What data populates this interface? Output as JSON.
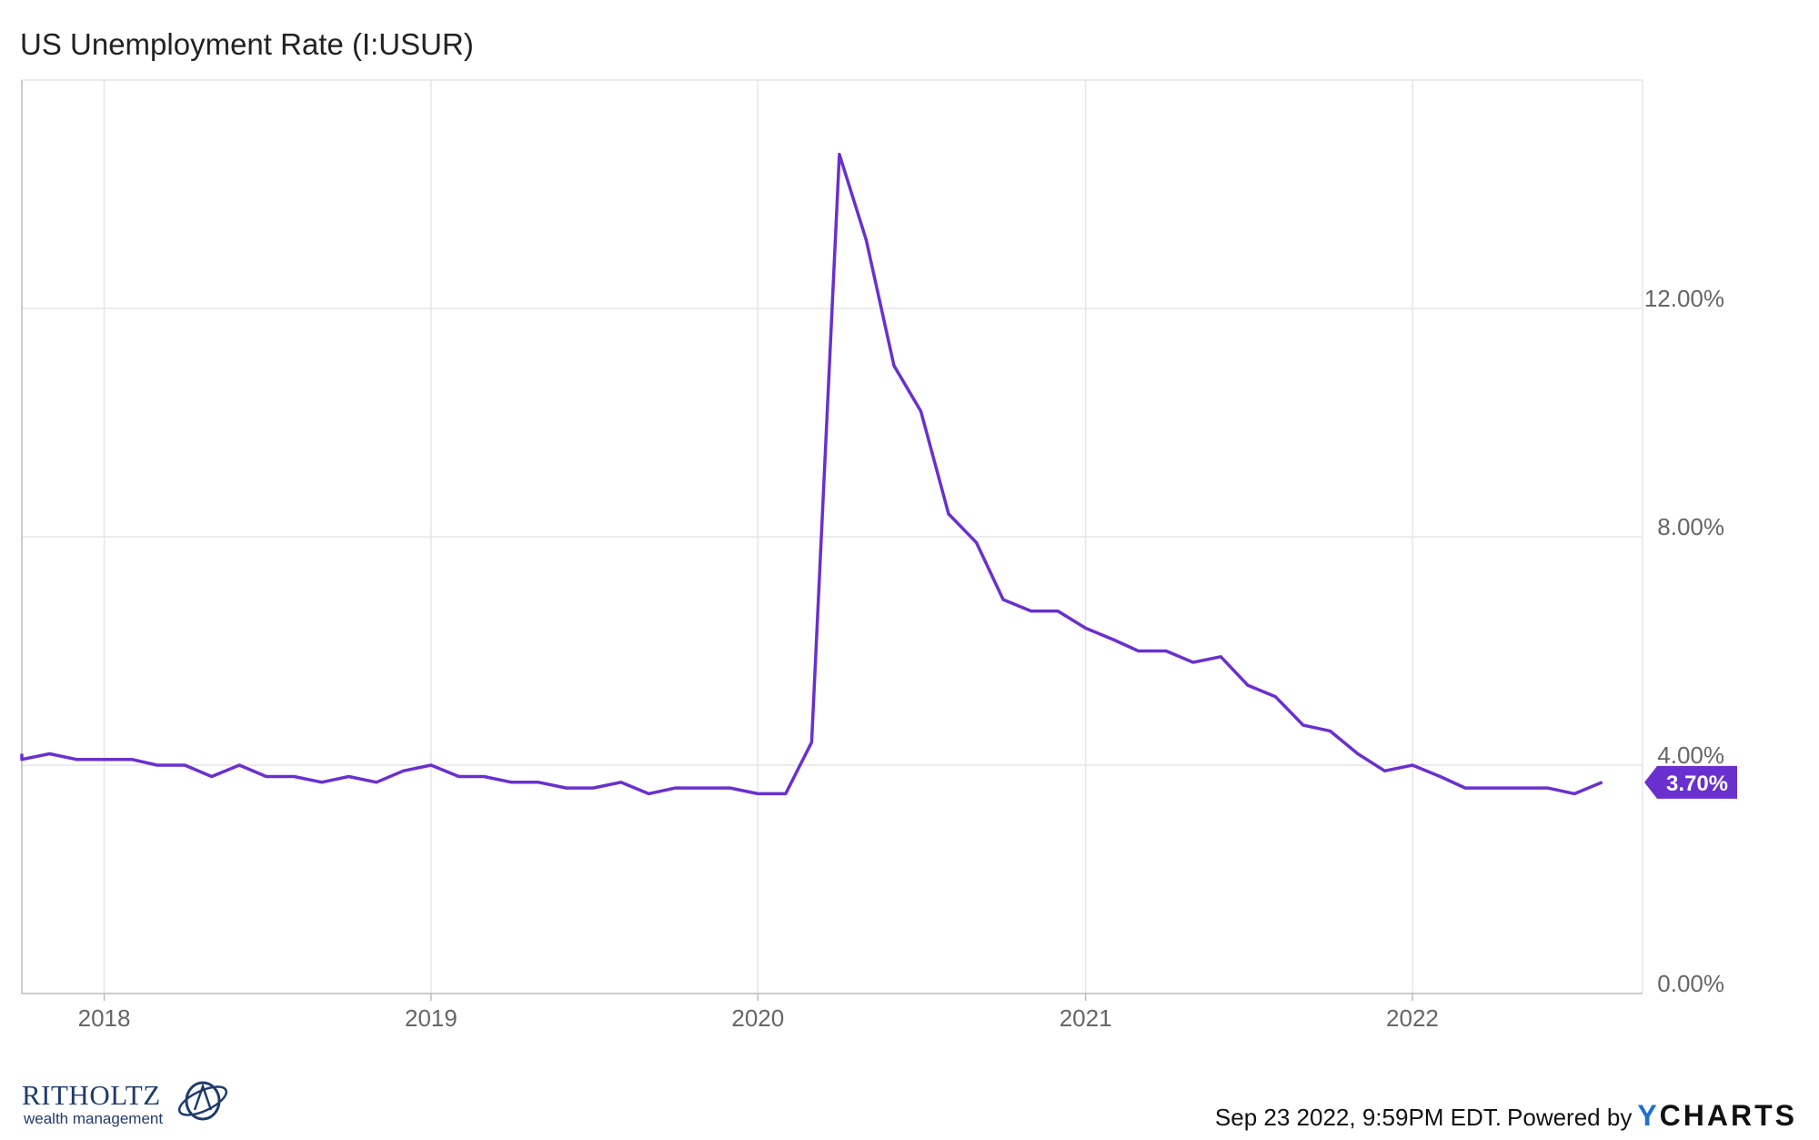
{
  "title": "US Unemployment Rate (I:USUR)",
  "colors": {
    "line": "#6a30cf",
    "grid": "#e6e6e6",
    "axis": "#bbbbbb",
    "badge": "#6a30cf",
    "brand_accent": "#1f6fd1"
  },
  "chart_data": {
    "type": "line",
    "title": "US Unemployment Rate (I:USUR)",
    "xlabel": "",
    "ylabel": "",
    "x_ticks": [
      "2018",
      "2019",
      "2020",
      "2021",
      "2022"
    ],
    "y_ticks": [
      "0.00%",
      "4.00%",
      "8.00%",
      "12.00%"
    ],
    "ylim": [
      0,
      16
    ],
    "grid": true,
    "y_axis_position": "right",
    "last_value_label": "3.70%",
    "series": [
      {
        "dates": [
          "2017-09",
          "2017-10",
          "2017-11",
          "2017-12",
          "2018-01",
          "2018-02",
          "2018-03",
          "2018-04",
          "2018-05",
          "2018-06",
          "2018-07",
          "2018-08",
          "2018-09",
          "2018-10",
          "2018-11",
          "2018-12",
          "2019-01",
          "2019-02",
          "2019-03",
          "2019-04",
          "2019-05",
          "2019-06",
          "2019-07",
          "2019-08",
          "2019-09",
          "2019-10",
          "2019-11",
          "2019-12",
          "2020-01",
          "2020-02",
          "2020-03",
          "2020-04",
          "2020-05",
          "2020-06",
          "2020-07",
          "2020-08",
          "2020-09",
          "2020-10",
          "2020-11",
          "2020-12",
          "2021-01",
          "2021-02",
          "2021-03",
          "2021-04",
          "2021-05",
          "2021-06",
          "2021-07",
          "2021-08",
          "2021-09",
          "2021-10",
          "2021-11",
          "2021-12",
          "2022-01",
          "2022-02",
          "2022-03",
          "2022-04",
          "2022-05",
          "2022-06",
          "2022-07",
          "2022-08"
        ],
        "values": [
          4.2,
          4.1,
          4.2,
          4.1,
          4.1,
          4.1,
          4.0,
          4.0,
          3.8,
          4.0,
          3.8,
          3.8,
          3.7,
          3.8,
          3.7,
          3.9,
          4.0,
          3.8,
          3.8,
          3.7,
          3.7,
          3.6,
          3.6,
          3.7,
          3.5,
          3.6,
          3.6,
          3.6,
          3.5,
          3.5,
          4.4,
          14.7,
          13.2,
          11.0,
          10.2,
          8.4,
          7.9,
          6.9,
          6.7,
          6.7,
          6.4,
          6.2,
          6.0,
          6.0,
          5.8,
          5.9,
          5.4,
          5.2,
          4.7,
          4.6,
          4.2,
          3.9,
          4.0,
          3.8,
          3.6,
          3.6,
          3.6,
          3.6,
          3.5,
          3.7
        ]
      }
    ]
  },
  "logo": {
    "name": "RITHOLTZ",
    "sub": "wealth management"
  },
  "footer": {
    "timestamp": "Sep 23 2022, 9:59PM EDT.",
    "powered": "Powered by",
    "brand_first": "Y",
    "brand_rest": "CHARTS"
  }
}
